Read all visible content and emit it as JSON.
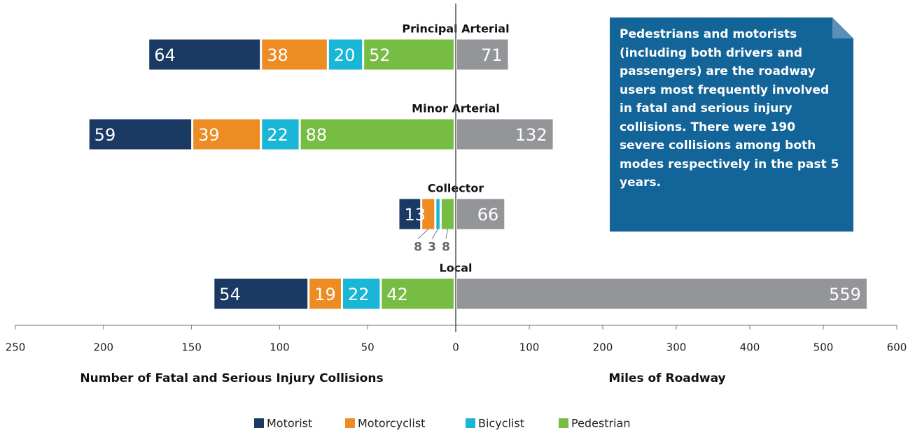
{
  "chart_data": {
    "type": "diverging_bar",
    "categories": [
      "Principal Arterial",
      "Minor Arterial",
      "Collector",
      "Local"
    ],
    "series": [
      {
        "name": "Pedestrian",
        "color": "#77bc43",
        "values": [
          52,
          88,
          8,
          42
        ]
      },
      {
        "name": "Bicyclist",
        "color": "#1ab6d6",
        "values": [
          20,
          22,
          3,
          22
        ]
      },
      {
        "name": "Motorcyclist",
        "color": "#ec8c23",
        "values": [
          38,
          39,
          8,
          19
        ]
      },
      {
        "name": "Motorist",
        "color": "#1a3a63",
        "values": [
          64,
          59,
          13,
          54
        ]
      }
    ],
    "miles": {
      "color": "#939598",
      "values": [
        71,
        132,
        66,
        559
      ],
      "axis": "x2"
    },
    "xlim": [
      250,
      0
    ],
    "xticks": [
      250,
      200,
      150,
      100,
      50,
      0
    ],
    "x2lim": [
      0,
      600
    ],
    "x2ticks": [
      100,
      200,
      300,
      400,
      500,
      600
    ],
    "xlabel": "Number of Fatal and Serious Injury Collisions",
    "x2label": "Miles of Roadway",
    "annotation": "Pedestrians and motorists (including both drivers and passengers) are the roadway users most frequently involved in fatal and serious injury collisions. There were 190 severe collisions among both modes respectively in the past 5 years.",
    "legend_order": [
      3,
      2,
      1,
      0
    ]
  }
}
